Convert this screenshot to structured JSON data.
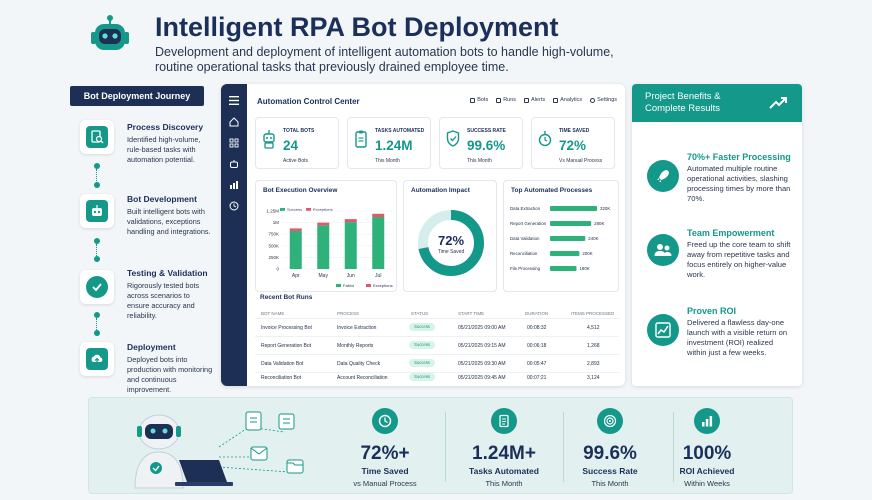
{
  "header": {
    "title": "Intelligent RPA Bot Deployment",
    "subtitle": "Development and deployment of intelligent automation bots to handle high-volume, routine operational tasks that previously drained employee time."
  },
  "journey": {
    "title": "Bot Deployment Journey",
    "steps": [
      {
        "title": "Process Discovery",
        "desc": "Identified high-volume, rule-based tasks with automation potential.",
        "icon": "document-search-icon"
      },
      {
        "title": "Bot Development",
        "desc": "Built intelligent bots with validations, exceptions handling and integrations.",
        "icon": "robot-icon"
      },
      {
        "title": "Testing & Validation",
        "desc": "Rigorously tested bots across scenarios to ensure accuracy and reliability.",
        "icon": "check-circle-icon"
      },
      {
        "title": "Deployment",
        "desc": "Deployed bots into production with monitoring and continuous improvement.",
        "icon": "cloud-upload-icon"
      }
    ]
  },
  "dashboard": {
    "title": "Automation Control Center",
    "nav": [
      "Bots",
      "Runs",
      "Alerts",
      "Analytics",
      "Settings"
    ],
    "kpis": [
      {
        "label": "TOTAL BOTS",
        "value": "24",
        "sub": "Active Bots",
        "icon": "robot-icon"
      },
      {
        "label": "TASKS AUTOMATED",
        "value": "1.24M",
        "sub": "This Month",
        "icon": "clipboard-icon"
      },
      {
        "label": "SUCCESS RATE",
        "value": "99.6%",
        "sub": "This Month",
        "icon": "shield-check-icon"
      },
      {
        "label": "TIME SAVED",
        "value": "72%",
        "sub": "Vs Manual Process",
        "icon": "stopwatch-icon"
      }
    ],
    "execution": {
      "title": "Bot Execution Overview",
      "legend_success": "Success",
      "legend_exceptions": "Exceptions",
      "legend_failed": "Failed",
      "legend_exceptions2": "Exceptions"
    },
    "impact": {
      "title": "Automation Impact",
      "value": "72%",
      "label": "Time Saved",
      "fraction": 0.72
    },
    "top": {
      "title": "Top Automated Processes"
    },
    "runs": {
      "title": "Recent Bot Runs",
      "columns": [
        "BOT NAME",
        "PROCESS",
        "STATUS",
        "START TIME",
        "DURATION",
        "ITEMS PROCESSED"
      ],
      "rows": [
        {
          "bot": "Invoice Processing Bot",
          "process": "Invoice Extraction",
          "status": "Success",
          "start": "05/21/2025 09:00 AM",
          "duration": "00:08:32",
          "items": "4,512"
        },
        {
          "bot": "Report Generation Bot",
          "process": "Monthly Reports",
          "status": "Success",
          "start": "05/21/2025 09:15 AM",
          "duration": "00:06:18",
          "items": "1,268"
        },
        {
          "bot": "Data Validation Bot",
          "process": "Data Quality Check",
          "status": "Success",
          "start": "05/21/2025 09:30 AM",
          "duration": "00:05:47",
          "items": "2,893"
        },
        {
          "bot": "Reconciliation Bot",
          "process": "Account Reconciliation",
          "status": "Success",
          "start": "05/21/2025 09:45 AM",
          "duration": "00:07:21",
          "items": "3,124"
        }
      ]
    }
  },
  "chart_data": [
    {
      "type": "bar",
      "title": "Bot Execution Overview",
      "categories": [
        "Apr",
        "May",
        "Jun",
        "Jul"
      ],
      "ytick_labels": [
        "1.25M",
        "1M",
        "750K",
        "500K",
        "250K",
        "0"
      ],
      "ylim": [
        0,
        1250000
      ],
      "series": [
        {
          "name": "Success",
          "values": [
            820000,
            940000,
            1010000,
            1120000
          ]
        },
        {
          "name": "Exceptions",
          "values": [
            55000,
            60000,
            65000,
            70000
          ]
        }
      ],
      "colors": {
        "success": "#2fb27a",
        "exceptions": "#e0596b"
      }
    },
    {
      "type": "bar",
      "title": "Top Automated Processes",
      "orientation": "horizontal",
      "categories": [
        "Data Extraction",
        "Report Generation",
        "Data Validation",
        "Reconciliation",
        "File Processing"
      ],
      "values": [
        320000,
        280000,
        240000,
        200000,
        180000
      ],
      "value_labels": [
        "320K",
        "280K",
        "240K",
        "200K",
        "180K"
      ],
      "xlim": [
        0,
        340000
      ]
    }
  ],
  "benefits": {
    "title": "Project Benefits & Complete Results",
    "items": [
      {
        "title": "70%+ Faster Processing",
        "desc": "Automated multiple routine operational activities, slashing processing times by more than 70%.",
        "icon": "rocket-icon"
      },
      {
        "title": "Team Empowerment",
        "desc": "Freed up the core team to shift away from repetitive tasks and focus entirely on higher-value work.",
        "icon": "team-icon"
      },
      {
        "title": "Proven ROI",
        "desc": "Delivered a flawless day-one launch with a visible return on investment (ROI) realized within just a few weeks.",
        "icon": "growth-chart-icon"
      }
    ]
  },
  "stats": [
    {
      "value": "72%+",
      "label": "Time Saved",
      "sub": "vs Manual Process",
      "icon": "clock-icon"
    },
    {
      "value": "1.24M+",
      "label": "Tasks Automated",
      "sub": "This Month",
      "icon": "document-icon"
    },
    {
      "value": "99.6%",
      "label": "Success Rate",
      "sub": "This Month",
      "icon": "target-icon"
    },
    {
      "value": "100%",
      "label": "ROI Achieved",
      "sub": "Within Weeks",
      "icon": "bar-chart-icon"
    }
  ],
  "colors": {
    "teal": "#13988a",
    "navy": "#1e2f55",
    "green": "#2fb27a",
    "red": "#e0596b"
  }
}
